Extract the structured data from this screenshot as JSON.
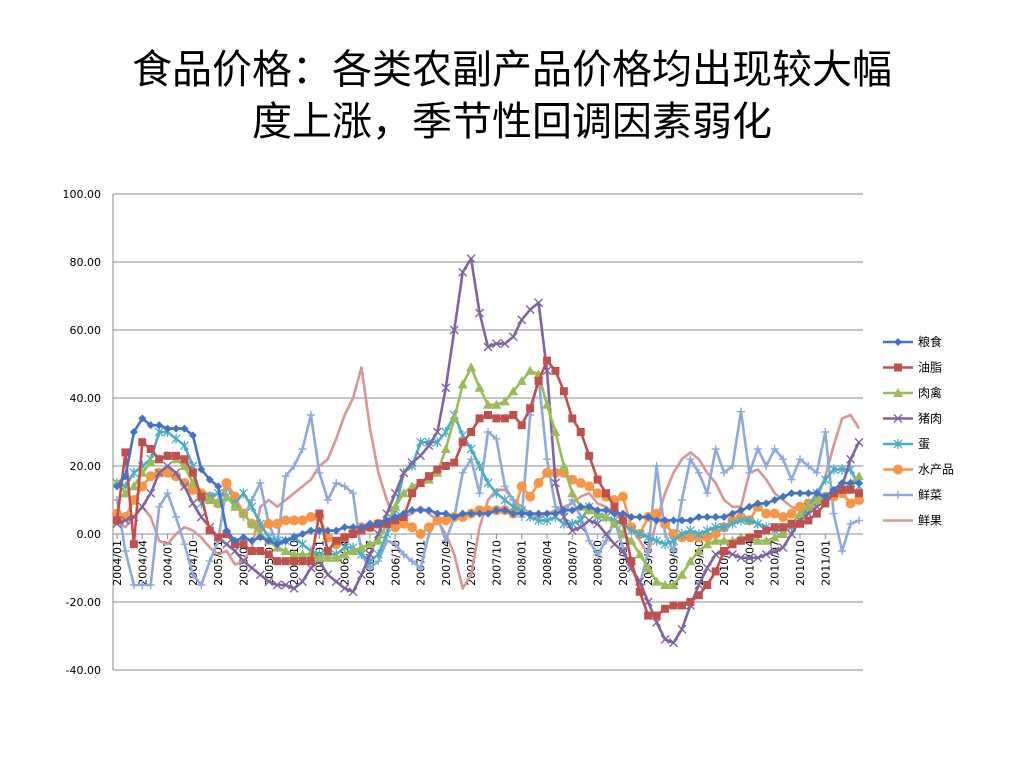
{
  "slide": {
    "title_line1": "食品价格：各类农副产品价格均出现较大幅",
    "title_line2": "度上涨，季节性回调因素弱化"
  },
  "chart_data": {
    "type": "line",
    "ylim": [
      -40,
      100
    ],
    "yticks": [
      "100.00",
      "80.00",
      "60.00",
      "40.00",
      "20.00",
      "0.00",
      "-20.00",
      "-40.00"
    ],
    "ytick_values": [
      100,
      80,
      60,
      40,
      20,
      0,
      -20,
      -40
    ],
    "grid": "horizontal",
    "legend_position": "right",
    "x_tick_labels": [
      "2004/01",
      "2004/04",
      "2004/07",
      "2004/10",
      "2005/01",
      "2005/04",
      "2005/07",
      "2005/10",
      "2006/01",
      "2006/04",
      "2006/07",
      "2006/10",
      "2007/01",
      "2007/04",
      "2007/07",
      "2007/10",
      "2008/01",
      "2008/04",
      "2008/07",
      "2008/10",
      "2009/01",
      "2009/04",
      "2009/07",
      "2009/10",
      "2010/01",
      "2010/04",
      "2010/07",
      "2010/10",
      "2011/01"
    ],
    "n_points": 89,
    "series": [
      {
        "name": "粮食",
        "color": "#4472C4",
        "marker": "diamond",
        "values": [
          14,
          17,
          30,
          34,
          32,
          32,
          31,
          31,
          31,
          29,
          19,
          16,
          14,
          1,
          -2,
          -1,
          -2,
          -1,
          -2,
          -3,
          -2,
          -1,
          0,
          1,
          1,
          1,
          1,
          2,
          2,
          2,
          3,
          3,
          4,
          5,
          6,
          7,
          7,
          7,
          6,
          6,
          5,
          6,
          6,
          6,
          6,
          7,
          7,
          6,
          6,
          6,
          6,
          6,
          6,
          7,
          7,
          8,
          8,
          7,
          7,
          6,
          6,
          5,
          5,
          5,
          4,
          4,
          4,
          4,
          4,
          5,
          5,
          5,
          5,
          6,
          7,
          8,
          9,
          9,
          10,
          11,
          12,
          12,
          12,
          12,
          11,
          13,
          15,
          15,
          15
        ]
      },
      {
        "name": "油脂",
        "color": "#C0504D",
        "marker": "square",
        "values": [
          4,
          24,
          -3,
          27,
          25,
          22,
          23,
          23,
          22,
          18,
          11,
          1,
          -1,
          0,
          -3,
          -3,
          -5,
          -5,
          -6,
          -8,
          -8,
          -8,
          -8,
          -8,
          6,
          -5,
          -2,
          -1,
          0,
          1,
          2,
          3,
          3,
          4,
          5,
          12,
          15,
          17,
          19,
          20,
          21,
          27,
          30,
          34,
          35,
          34,
          34,
          35,
          32,
          37,
          45,
          51,
          48,
          42,
          34,
          30,
          23,
          16,
          12,
          8,
          4,
          -8,
          -17,
          -24,
          -24,
          -22,
          -21,
          -21,
          -20,
          -18,
          -15,
          -11,
          -5,
          -3,
          -2,
          -1,
          0,
          1,
          2,
          2,
          3,
          3,
          4,
          6,
          9,
          12,
          13,
          13,
          12
        ]
      },
      {
        "name": "肉禽",
        "color": "#9BBB59",
        "marker": "triangle",
        "values": [
          15,
          12,
          14,
          18,
          21,
          22,
          23,
          22,
          20,
          15,
          12,
          10,
          9,
          11,
          8,
          6,
          3,
          0,
          -2,
          -4,
          -5,
          -6,
          -6,
          -6,
          -7,
          -7,
          -7,
          -6,
          -5,
          -4,
          -3,
          -2,
          3,
          8,
          12,
          14,
          15,
          16,
          18,
          25,
          34,
          44,
          49,
          43,
          38,
          38,
          39,
          42,
          45,
          48,
          47,
          38,
          30,
          20,
          12,
          8,
          7,
          6,
          5,
          3,
          0,
          -2,
          -6,
          -10,
          -14,
          -15,
          -15,
          -12,
          -8,
          -5,
          -3,
          -2,
          -2,
          -2,
          -1,
          -1,
          -2,
          -2,
          -1,
          0,
          3,
          6,
          8,
          10,
          11,
          12,
          13,
          15,
          17
        ]
      },
      {
        "name": "猪肉",
        "color": "#8064A2",
        "marker": "x",
        "values": [
          3,
          4,
          5,
          8,
          12,
          18,
          20,
          18,
          14,
          9,
          5,
          2,
          -1,
          -3,
          -5,
          -8,
          -10,
          -12,
          -14,
          -15,
          -15,
          -16,
          -14,
          -10,
          -8,
          -12,
          -14,
          -16,
          -17,
          -12,
          -6,
          0,
          6,
          12,
          18,
          21,
          23,
          26,
          30,
          43,
          60,
          77,
          81,
          65,
          55,
          56,
          56,
          58,
          63,
          66,
          68,
          48,
          15,
          5,
          1,
          2,
          4,
          3,
          0,
          -3,
          -5,
          -10,
          -14,
          -20,
          -26,
          -31,
          -32,
          -28,
          -21,
          -15,
          -10,
          -6,
          -5,
          -6,
          -7,
          -7,
          -7,
          -6,
          -5,
          -4,
          0,
          4,
          6,
          8,
          10,
          12,
          14,
          22,
          27
        ]
      },
      {
        "name": "蛋",
        "color": "#4BACC6",
        "marker": "star",
        "values": [
          15,
          14,
          18,
          20,
          22,
          30,
          30,
          28,
          26,
          20,
          9,
          11,
          12,
          11,
          9,
          12,
          8,
          3,
          -1,
          -2,
          -2,
          -1,
          -3,
          -5,
          -6,
          -6,
          -6,
          -4,
          -4,
          -6,
          -8,
          -6,
          0,
          7,
          18,
          20,
          27,
          27,
          27,
          30,
          35,
          29,
          25,
          20,
          15,
          12,
          10,
          8,
          7,
          5,
          4,
          4,
          5,
          3,
          3,
          4,
          8,
          5,
          5,
          4,
          3,
          1,
          0,
          -1,
          -2,
          -3,
          -2,
          0,
          1,
          0,
          1,
          2,
          2,
          3,
          4,
          4,
          3,
          2,
          1,
          1,
          2,
          4,
          8,
          12,
          16,
          19,
          19,
          19,
          14
        ]
      },
      {
        "name": "水产品",
        "color": "#F79646",
        "marker": "circle",
        "values": [
          6,
          5,
          10,
          14,
          17,
          18,
          18,
          17,
          15,
          13,
          12,
          11,
          9,
          15,
          11,
          6,
          3,
          2,
          3,
          3,
          4,
          4,
          4,
          5,
          5,
          -1,
          -3,
          -1,
          1,
          2,
          2,
          3,
          3,
          2,
          3,
          2,
          0,
          2,
          4,
          4,
          5,
          5,
          6,
          7,
          7,
          7,
          7,
          6,
          14,
          11,
          15,
          18,
          18,
          18,
          16,
          15,
          14,
          12,
          11,
          10,
          11,
          2,
          0,
          5,
          6,
          3,
          0,
          -1,
          -1,
          -1,
          -1,
          0,
          2,
          4,
          5,
          4,
          8,
          6,
          6,
          5,
          6,
          8,
          9,
          10,
          11,
          11,
          12,
          9,
          10
        ]
      },
      {
        "name": "鲜菜",
        "color": "#8EA9DB",
        "marker": "plus",
        "values": [
          10,
          -5,
          -15,
          -15,
          -15,
          8,
          12,
          5,
          -3,
          -12,
          -15,
          -8,
          -2,
          14,
          10,
          5,
          10,
          15,
          3,
          -3,
          17,
          20,
          25,
          35,
          18,
          10,
          15,
          14,
          12,
          -6,
          -10,
          -8,
          -2,
          -3,
          -6,
          -8,
          -10,
          0,
          5,
          -2,
          5,
          18,
          22,
          12,
          30,
          28,
          14,
          10,
          5,
          35,
          46,
          22,
          8,
          6,
          10,
          5,
          -2,
          -6,
          -2,
          4,
          -4,
          -10,
          -15,
          -5,
          20,
          0,
          -5,
          10,
          22,
          18,
          12,
          25,
          18,
          20,
          36,
          18,
          25,
          20,
          25,
          22,
          16,
          22,
          20,
          18,
          30,
          6,
          -5,
          3,
          4
        ]
      },
      {
        "name": "鲜果",
        "color": "#D99694",
        "marker": "none",
        "values": [
          4,
          2,
          5,
          8,
          5,
          -2,
          -3,
          0,
          2,
          1,
          -1,
          -4,
          -6,
          -5,
          -9,
          -8,
          -4,
          8,
          10,
          8,
          10,
          12,
          14,
          16,
          20,
          22,
          28,
          35,
          40,
          49,
          31,
          18,
          10,
          4,
          5,
          6,
          8,
          6,
          4,
          0,
          -6,
          -16,
          -12,
          2,
          10,
          13,
          13,
          10,
          8,
          6,
          5,
          6,
          7,
          8,
          9,
          11,
          12,
          9,
          8,
          6,
          4,
          2,
          -2,
          -6,
          4,
          12,
          18,
          22,
          24,
          22,
          18,
          15,
          10,
          8,
          8,
          18,
          19,
          16,
          12,
          10,
          8,
          7,
          6,
          10,
          17,
          26,
          34,
          35,
          31
        ]
      }
    ]
  }
}
